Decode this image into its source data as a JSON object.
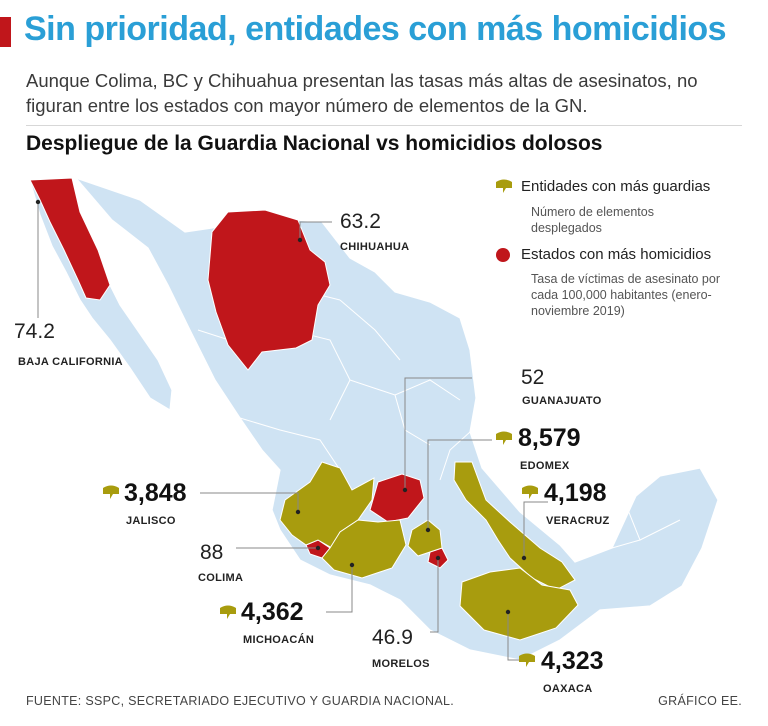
{
  "header": {
    "title": "Sin prioridad, entidades con más homicidios",
    "subtitle": "Aunque Colima, BC y Chihuahua presentan las tasas más altas de asesinatos, no figuran entre los estados con mayor número de elementos de la GN.",
    "chart_heading": "Despliegue de la Guardia Nacional vs homicidios dolosos"
  },
  "legend": {
    "guard_title": "Entidades con más guardias",
    "guard_desc": "Número de elementos desplegados",
    "homicide_title": "Estados con más homicidios",
    "homicide_desc": "Tasa de víctimas de asesinato por cada 100,000 habitantes (enero-noviembre 2019)"
  },
  "homicide_states": [
    {
      "name": "BAJA CALIFORNIA",
      "rate": "74.2"
    },
    {
      "name": "CHIHUAHUA",
      "rate": "63.2"
    },
    {
      "name": "GUANAJUATO",
      "rate": "52"
    },
    {
      "name": "COLIMA",
      "rate": "88"
    },
    {
      "name": "MORELOS",
      "rate": "46.9"
    }
  ],
  "guard_states": [
    {
      "name": "EDOMEX",
      "count": "8,579"
    },
    {
      "name": "JALISCO",
      "count": "3,848"
    },
    {
      "name": "VERACRUZ",
      "count": "4,198"
    },
    {
      "name": "MICHOACÁN",
      "count": "4,362"
    },
    {
      "name": "OAXACA",
      "count": "4,323"
    }
  ],
  "footer": {
    "source": "FUENTE: SSPC, SECRETARIADO EJECUTIVO Y GUARDIA NACIONAL.",
    "credit": "GRÁFICO EE."
  },
  "colors": {
    "title": "#2a9fd6",
    "homicide": "#c0161b",
    "guard": "#a89c0e",
    "land": "#cfe3f3",
    "border": "#ffffff"
  }
}
